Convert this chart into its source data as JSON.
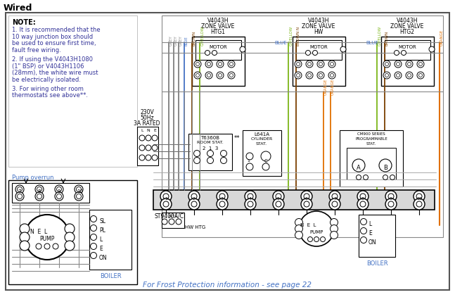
{
  "title": "Wired",
  "bg_color": "#ffffff",
  "note_lines": [
    "NOTE:",
    "1. It is recommended that the",
    "10 way junction box should",
    "be used to ensure first time,",
    "fault free wiring.",
    "",
    "2. If using the V4043H1080",
    "(1\" BSP) or V4043H1106",
    "(28mm), the white wire must",
    "be electrically isolated.",
    "",
    "3. For wiring other room",
    "thermostats see above**."
  ],
  "pump_overrun_label": "Pump overrun",
  "frost_text": "For Frost Protection information - see page 22",
  "grey": "#7f7f7f",
  "blue": "#4472c4",
  "brown": "#7b3f00",
  "gyellow": "#7cb518",
  "orange": "#e07000",
  "black": "#000000",
  "text_blue": "#4472c4",
  "text_orange": "#e07000"
}
